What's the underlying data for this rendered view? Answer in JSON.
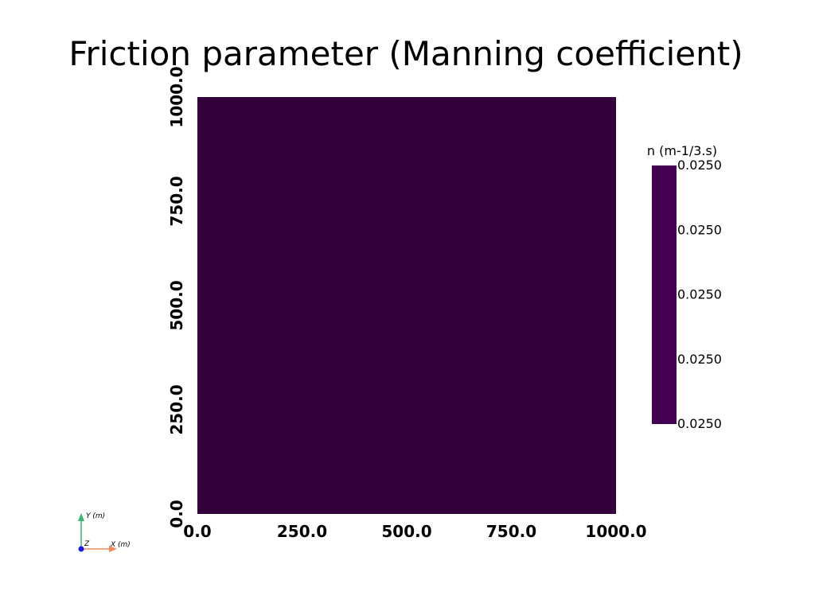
{
  "chart_data": {
    "type": "heatmap",
    "title": "Friction parameter (Manning coefficient)",
    "xlim": [
      0,
      1000
    ],
    "ylim": [
      0,
      1000
    ],
    "x_ticks": [
      "0.0",
      "250.0",
      "500.0",
      "750.0",
      "1000.0"
    ],
    "y_ticks": [
      "0.0",
      "250.0",
      "500.0",
      "750.0",
      "1000.0"
    ],
    "x_tick_values": [
      0,
      250,
      500,
      750,
      1000
    ],
    "y_tick_values": [
      0,
      250,
      500,
      750,
      1000
    ],
    "field_value": 0.025,
    "field_color": "#35013d",
    "colorbar": {
      "title": "n (m-1/3.s)",
      "color": "#440154",
      "placement": "right",
      "tick_labels": [
        "0.0250",
        "0.0250",
        "0.0250",
        "0.0250",
        "0.0250"
      ]
    },
    "axes_widget": {
      "y_label": "Y (m)",
      "x_label": "X (m)",
      "z_label": "Z",
      "y_color": "#3cb371",
      "x_color": "#f08a5d",
      "z_color": "#1a1adb"
    }
  }
}
